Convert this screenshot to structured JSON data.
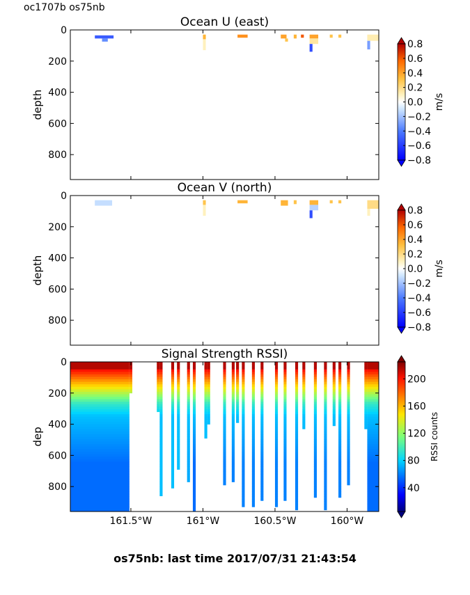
{
  "header": {
    "cruise_label": "oc1707b os75nb"
  },
  "footer": {
    "last_time": "os75nb: last time 2017/07/31 21:43:54"
  },
  "chart_data": [
    {
      "type": "heatmap",
      "title": "Ocean U (east)",
      "ylabel": "depth",
      "xlim": [
        -161.92,
        -159.78
      ],
      "ylim": [
        960,
        0
      ],
      "yticks": [
        0,
        200,
        400,
        600,
        800
      ],
      "colorbar": {
        "label": "m/s",
        "ticks": [
          "0.8",
          "0.6",
          "0.4",
          "0.2",
          "0.0",
          "−0.2",
          "−0.4",
          "−0.6",
          "−0.8"
        ],
        "range": [
          -0.8,
          0.8
        ]
      },
      "patches": [
        {
          "lon0": -161.75,
          "lon1": -161.62,
          "d0": 35,
          "d1": 55,
          "value": -0.5
        },
        {
          "lon0": -161.7,
          "lon1": -161.66,
          "d0": 55,
          "d1": 75,
          "value": -0.35
        },
        {
          "lon0": -161.0,
          "lon1": -160.98,
          "d0": 30,
          "d1": 60,
          "value": 0.35
        },
        {
          "lon0": -161.0,
          "lon1": -160.98,
          "d0": 60,
          "d1": 130,
          "value": 0.1
        },
        {
          "lon0": -160.76,
          "lon1": -160.69,
          "d0": 30,
          "d1": 50,
          "value": 0.45
        },
        {
          "lon0": -160.46,
          "lon1": -160.42,
          "d0": 30,
          "d1": 55,
          "value": 0.4
        },
        {
          "lon0": -160.43,
          "lon1": -160.41,
          "d0": 55,
          "d1": 75,
          "value": 0.3
        },
        {
          "lon0": -160.37,
          "lon1": -160.35,
          "d0": 30,
          "d1": 55,
          "value": 0.35
        },
        {
          "lon0": -160.32,
          "lon1": -160.3,
          "d0": 30,
          "d1": 50,
          "value": 0.6
        },
        {
          "lon0": -160.26,
          "lon1": -160.2,
          "d0": 30,
          "d1": 55,
          "value": 0.4
        },
        {
          "lon0": -160.26,
          "lon1": -160.2,
          "d0": 55,
          "d1": 90,
          "value": 0.15
        },
        {
          "lon0": -160.26,
          "lon1": -160.24,
          "d0": 90,
          "d1": 140,
          "value": -0.55
        },
        {
          "lon0": -160.12,
          "lon1": -160.1,
          "d0": 30,
          "d1": 50,
          "value": 0.3
        },
        {
          "lon0": -160.06,
          "lon1": -160.04,
          "d0": 30,
          "d1": 50,
          "value": 0.3
        },
        {
          "lon0": -159.86,
          "lon1": -159.78,
          "d0": 30,
          "d1": 70,
          "value": 0.12
        },
        {
          "lon0": -159.86,
          "lon1": -159.84,
          "d0": 70,
          "d1": 125,
          "value": -0.3
        }
      ]
    },
    {
      "type": "heatmap",
      "title": "Ocean V (north)",
      "ylabel": "depth",
      "xlim": [
        -161.92,
        -159.78
      ],
      "ylim": [
        960,
        0
      ],
      "yticks": [
        0,
        200,
        400,
        600,
        800
      ],
      "colorbar": {
        "label": "m/s",
        "ticks": [
          "0.8",
          "0.6",
          "0.4",
          "0.2",
          "0.0",
          "−0.2",
          "−0.4",
          "−0.6",
          "−0.8"
        ],
        "range": [
          -0.8,
          0.8
        ]
      },
      "patches": [
        {
          "lon0": -161.75,
          "lon1": -161.63,
          "d0": 30,
          "d1": 65,
          "value": -0.12
        },
        {
          "lon0": -161.0,
          "lon1": -160.98,
          "d0": 30,
          "d1": 60,
          "value": 0.3
        },
        {
          "lon0": -161.0,
          "lon1": -160.98,
          "d0": 60,
          "d1": 130,
          "value": 0.1
        },
        {
          "lon0": -160.76,
          "lon1": -160.69,
          "d0": 30,
          "d1": 50,
          "value": 0.35
        },
        {
          "lon0": -160.46,
          "lon1": -160.41,
          "d0": 30,
          "d1": 65,
          "value": 0.35
        },
        {
          "lon0": -160.37,
          "lon1": -160.35,
          "d0": 30,
          "d1": 55,
          "value": 0.3
        },
        {
          "lon0": -160.26,
          "lon1": -160.2,
          "d0": 30,
          "d1": 60,
          "value": 0.35
        },
        {
          "lon0": -160.26,
          "lon1": -160.2,
          "d0": 60,
          "d1": 95,
          "value": -0.15
        },
        {
          "lon0": -160.26,
          "lon1": -160.24,
          "d0": 95,
          "d1": 145,
          "value": -0.55
        },
        {
          "lon0": -160.12,
          "lon1": -160.1,
          "d0": 30,
          "d1": 50,
          "value": 0.3
        },
        {
          "lon0": -160.06,
          "lon1": -160.04,
          "d0": 30,
          "d1": 50,
          "value": 0.3
        },
        {
          "lon0": -159.86,
          "lon1": -159.78,
          "d0": 30,
          "d1": 85,
          "value": 0.2
        },
        {
          "lon0": -159.86,
          "lon1": -159.84,
          "d0": 85,
          "d1": 130,
          "value": 0.1
        }
      ]
    },
    {
      "type": "heatmap",
      "title": "Signal Strength RSSI)",
      "ylabel": "dep",
      "xlim": [
        -161.92,
        -159.78
      ],
      "ylim": [
        960,
        0
      ],
      "yticks": [
        0,
        200,
        400,
        600,
        800
      ],
      "xticks": [
        {
          "lon": -161.5,
          "label": "161.5°W"
        },
        {
          "lon": -161.0,
          "label": "161°W"
        },
        {
          "lon": -160.5,
          "label": "160.5°W"
        },
        {
          "lon": -160.0,
          "label": "160°W"
        }
      ],
      "colorbar": {
        "label": "RSSI counts",
        "ticks": [
          "200",
          "160",
          "120",
          "80",
          "40"
        ],
        "range": [
          5,
          225
        ]
      },
      "columns": [
        {
          "lon0": -161.92,
          "lon1": -161.51,
          "max_depth": 960,
          "deep": 55
        },
        {
          "lon0": -161.51,
          "lon1": -161.49,
          "max_depth": 200,
          "deep": 60
        },
        {
          "lon0": -161.32,
          "lon1": -161.3,
          "max_depth": 320,
          "deep": 75
        },
        {
          "lon0": -161.3,
          "lon1": -161.28,
          "max_depth": 860,
          "deep": 75
        },
        {
          "lon0": -161.22,
          "lon1": -161.2,
          "max_depth": 810,
          "deep": 75
        },
        {
          "lon0": -161.18,
          "lon1": -161.16,
          "max_depth": 690,
          "deep": 75
        },
        {
          "lon0": -161.11,
          "lon1": -161.09,
          "max_depth": 770,
          "deep": 70
        },
        {
          "lon0": -161.07,
          "lon1": -161.05,
          "max_depth": 960,
          "deep": 55
        },
        {
          "lon0": -160.99,
          "lon1": -160.97,
          "max_depth": 490,
          "deep": 75
        },
        {
          "lon0": -160.97,
          "lon1": -160.95,
          "max_depth": 400,
          "deep": 75
        },
        {
          "lon0": -160.86,
          "lon1": -160.84,
          "max_depth": 790,
          "deep": 60
        },
        {
          "lon0": -160.8,
          "lon1": -160.78,
          "max_depth": 770,
          "deep": 60
        },
        {
          "lon0": -160.77,
          "lon1": -160.75,
          "max_depth": 390,
          "deep": 65
        },
        {
          "lon0": -160.73,
          "lon1": -160.71,
          "max_depth": 930,
          "deep": 60
        },
        {
          "lon0": -160.66,
          "lon1": -160.64,
          "max_depth": 930,
          "deep": 60
        },
        {
          "lon0": -160.6,
          "lon1": -160.58,
          "max_depth": 890,
          "deep": 60
        },
        {
          "lon0": -160.5,
          "lon1": -160.48,
          "max_depth": 930,
          "deep": 60
        },
        {
          "lon0": -160.44,
          "lon1": -160.42,
          "max_depth": 890,
          "deep": 60
        },
        {
          "lon0": -160.36,
          "lon1": -160.34,
          "max_depth": 950,
          "deep": 60
        },
        {
          "lon0": -160.31,
          "lon1": -160.29,
          "max_depth": 430,
          "deep": 70
        },
        {
          "lon0": -160.23,
          "lon1": -160.21,
          "max_depth": 870,
          "deep": 60
        },
        {
          "lon0": -160.16,
          "lon1": -160.14,
          "max_depth": 950,
          "deep": 60
        },
        {
          "lon0": -160.1,
          "lon1": -160.08,
          "max_depth": 410,
          "deep": 70
        },
        {
          "lon0": -160.06,
          "lon1": -160.04,
          "max_depth": 870,
          "deep": 60
        },
        {
          "lon0": -160.0,
          "lon1": -159.98,
          "max_depth": 790,
          "deep": 60
        },
        {
          "lon0": -159.88,
          "lon1": -159.86,
          "max_depth": 430,
          "deep": 65
        },
        {
          "lon0": -159.86,
          "lon1": -159.78,
          "max_depth": 960,
          "deep": 55
        }
      ]
    }
  ]
}
